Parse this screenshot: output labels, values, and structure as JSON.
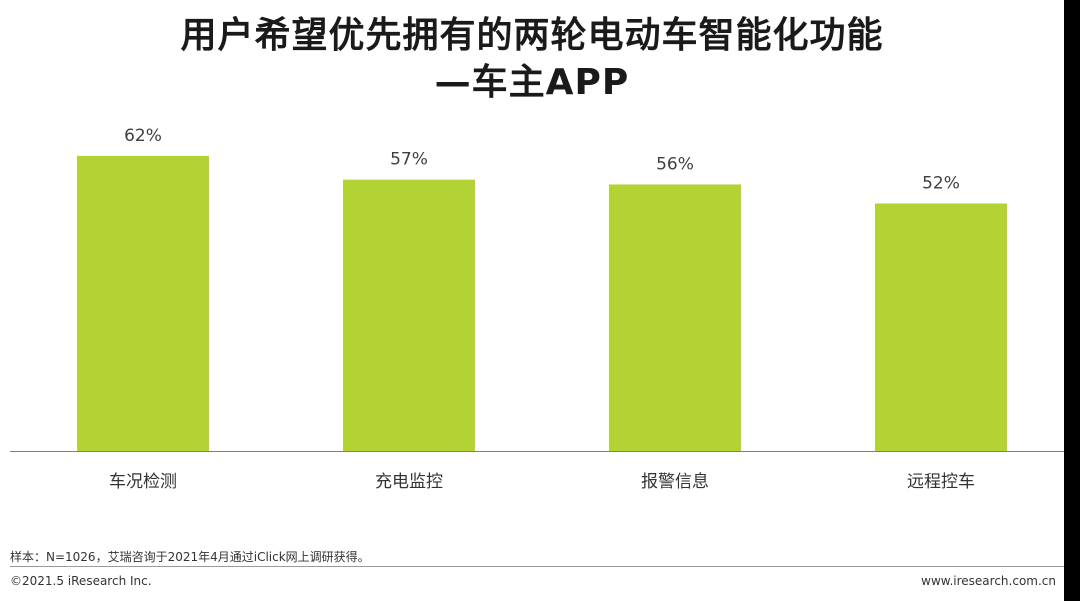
{
  "chart_data": {
    "type": "bar",
    "title": [
      "用户希望优先拥有的两轮电动车智能化功能",
      "—车主APP"
    ],
    "categories": [
      "车况检测",
      "充电监控",
      "报警信息",
      "远程控车"
    ],
    "values": [
      62,
      57,
      56,
      52
    ],
    "value_labels": [
      "62%",
      "57%",
      "56%",
      "52%"
    ],
    "unit": "%",
    "ylim": [
      0,
      100
    ],
    "grid": false,
    "legend": "none",
    "bar_color": "#b3d335",
    "axis_color": "#7f7f7f"
  },
  "footer": {
    "note": "样本：N=1026，艾瑞咨询于2021年4月通过iClick网上调研获得。",
    "copyright": "©2021.5 iResearch Inc.",
    "website": "www.iresearch.com.cn"
  }
}
